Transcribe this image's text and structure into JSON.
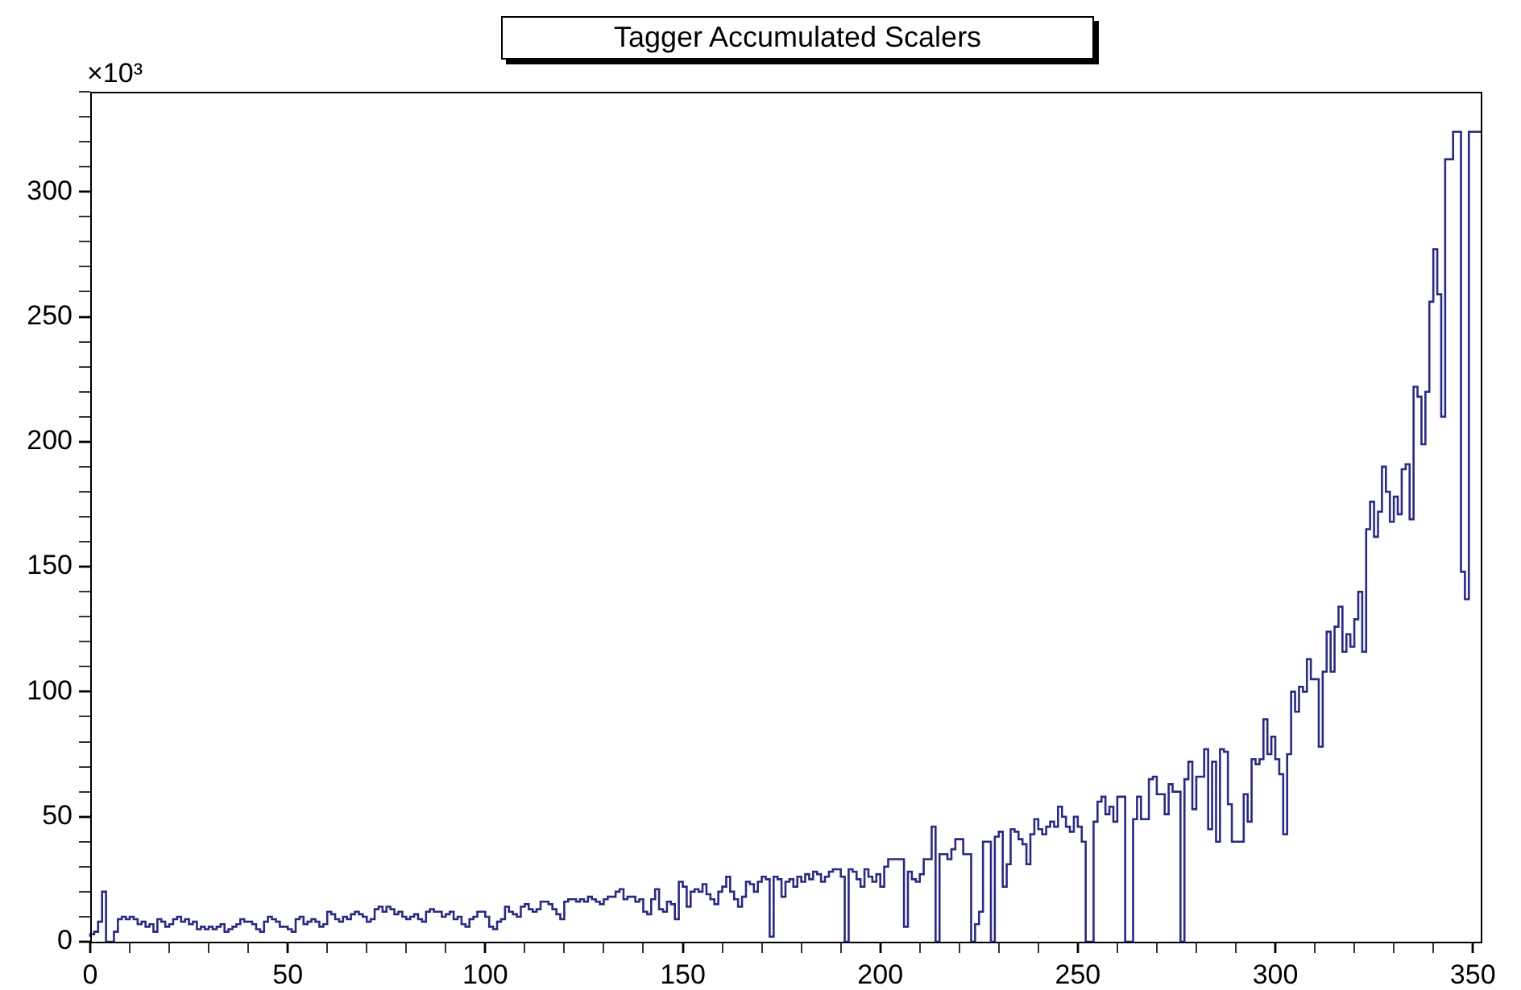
{
  "chart_data": {
    "type": "histogram",
    "title": "Tagger Accumulated Scalers",
    "ylabel": "×10³",
    "bins": [
      0,
      1,
      2,
      3,
      4,
      5,
      6,
      7,
      8,
      9,
      10,
      11,
      12,
      13,
      14,
      15,
      16,
      17,
      18,
      19,
      20,
      21,
      22,
      23,
      24,
      25,
      26,
      27,
      28,
      29,
      30,
      31,
      32,
      33,
      34,
      35,
      36,
      37,
      38,
      39,
      40,
      41,
      42,
      43,
      44,
      45,
      46,
      47,
      48,
      49,
      50,
      51,
      52,
      53,
      54,
      55,
      56,
      57,
      58,
      59,
      60,
      61,
      62,
      63,
      64,
      65,
      66,
      67,
      68,
      69,
      70,
      71,
      72,
      73,
      74,
      75,
      76,
      77,
      78,
      79,
      80,
      81,
      82,
      83,
      84,
      85,
      86,
      87,
      88,
      89,
      90,
      91,
      92,
      93,
      94,
      95,
      96,
      97,
      98,
      99,
      100,
      101,
      102,
      103,
      104,
      105,
      106,
      107,
      108,
      109,
      110,
      111,
      112,
      113,
      114,
      115,
      116,
      117,
      118,
      119,
      120,
      121,
      122,
      123,
      124,
      125,
      126,
      127,
      128,
      129,
      130,
      131,
      132,
      133,
      134,
      135,
      136,
      137,
      138,
      139,
      140,
      141,
      142,
      143,
      144,
      145,
      146,
      147,
      148,
      149,
      150,
      151,
      152,
      153,
      154,
      155,
      156,
      157,
      158,
      159,
      160,
      161,
      162,
      163,
      164,
      165,
      166,
      167,
      168,
      169,
      170,
      171,
      172,
      173,
      174,
      175,
      176,
      177,
      178,
      179,
      180,
      181,
      182,
      183,
      184,
      185,
      186,
      187,
      188,
      189,
      190,
      191,
      192,
      193,
      194,
      195,
      196,
      197,
      198,
      199,
      200,
      201,
      202,
      203,
      204,
      205,
      206,
      207,
      208,
      209,
      210,
      211,
      212,
      213,
      214,
      215,
      216,
      217,
      218,
      219,
      220,
      221,
      222,
      223,
      224,
      225,
      226,
      227,
      228,
      229,
      230,
      231,
      232,
      233,
      234,
      235,
      236,
      237,
      238,
      239,
      240,
      241,
      242,
      243,
      244,
      245,
      246,
      247,
      248,
      249,
      250,
      251,
      252,
      253,
      254,
      255,
      256,
      257,
      258,
      259,
      260,
      261,
      262,
      263,
      264,
      265,
      266,
      267,
      268,
      269,
      270,
      271,
      272,
      273,
      274,
      275,
      276,
      277,
      278,
      279,
      280,
      281,
      282,
      283,
      284,
      285,
      286,
      287,
      288,
      289,
      290,
      291,
      292,
      293,
      294,
      295,
      296,
      297,
      298,
      299,
      300,
      301,
      302,
      303,
      304,
      305,
      306,
      307,
      308,
      309,
      310,
      311,
      312,
      313,
      314,
      315,
      316,
      317,
      318,
      319,
      320,
      321,
      322,
      323,
      324,
      325,
      326,
      327,
      328,
      329,
      330,
      331,
      332,
      333,
      334,
      335,
      336,
      337,
      338,
      339,
      340,
      341,
      342,
      343,
      344,
      345,
      346,
      347,
      348,
      349,
      350,
      351,
      352
    ],
    "values": [
      2,
      3,
      4,
      8,
      20,
      0,
      0,
      4,
      9,
      10,
      9,
      10,
      9,
      7,
      8,
      6,
      7,
      4,
      9,
      8,
      6,
      7,
      9,
      10,
      8,
      9,
      7,
      8,
      5,
      6,
      5,
      6,
      5,
      6,
      7,
      4,
      5,
      6,
      7,
      9,
      8,
      8,
      7,
      5,
      4,
      8,
      10,
      9,
      8,
      6,
      6,
      5,
      4,
      9,
      10,
      7,
      8,
      9,
      8,
      6,
      7,
      12,
      11,
      9,
      8,
      10,
      9,
      11,
      12,
      11,
      10,
      8,
      9,
      13,
      14,
      12,
      14,
      13,
      11,
      12,
      10,
      9,
      10,
      11,
      9,
      8,
      12,
      13,
      12,
      12,
      10,
      11,
      12,
      9,
      10,
      7,
      6,
      9,
      10,
      12,
      12,
      10,
      6,
      5,
      8,
      9,
      14,
      12,
      11,
      10,
      14,
      15,
      13,
      12,
      13,
      16,
      16,
      15,
      13,
      11,
      9,
      16,
      17,
      17,
      16,
      17,
      16,
      18,
      17,
      16,
      15,
      17,
      18,
      18,
      20,
      21,
      17,
      18,
      18,
      16,
      17,
      12,
      11,
      17,
      21,
      13,
      12,
      16,
      15,
      9,
      24,
      22,
      14,
      20,
      21,
      20,
      23,
      19,
      17,
      15,
      20,
      22,
      26,
      20,
      17,
      14,
      18,
      24,
      23,
      20,
      24,
      26,
      25,
      2,
      26,
      25,
      18,
      24,
      25,
      22,
      26,
      24,
      27,
      25,
      28,
      27,
      24,
      26,
      28,
      29,
      29,
      26,
      0,
      29,
      28,
      25,
      22,
      29,
      26,
      24,
      27,
      22,
      30,
      33,
      33,
      33,
      33,
      6,
      28,
      25,
      24,
      27,
      33,
      33,
      46,
      0,
      35,
      35,
      33,
      37,
      41,
      41,
      35,
      35,
      0,
      7,
      12,
      40,
      40,
      0,
      42,
      44,
      22,
      31,
      45,
      44,
      41,
      39,
      31,
      43,
      49,
      45,
      43,
      46,
      48,
      46,
      54,
      50,
      46,
      44,
      50,
      46,
      40,
      0,
      0,
      48,
      56,
      58,
      51,
      54,
      48,
      58,
      58,
      0,
      0,
      49,
      58,
      49,
      49,
      65,
      66,
      59,
      59,
      51,
      63,
      60,
      60,
      0,
      65,
      72,
      53,
      66,
      66,
      77,
      45,
      72,
      40,
      77,
      76,
      55,
      40,
      40,
      40,
      59,
      48,
      73,
      71,
      73,
      89,
      75,
      82,
      73,
      67,
      43,
      75,
      100,
      92,
      102,
      100,
      113,
      105,
      105,
      78,
      108,
      124,
      108,
      126,
      134,
      116,
      123,
      118,
      129,
      140,
      116,
      165,
      176,
      162,
      172,
      190,
      180,
      168,
      178,
      171,
      189,
      191,
      169,
      222,
      218,
      199,
      220,
      256,
      277,
      259,
      210,
      313,
      313,
      324,
      324,
      148,
      137,
      324,
      324
    ],
    "color": "#2a2a80",
    "xlim": [
      0,
      352
    ],
    "ylim": [
      0,
      340
    ],
    "xticks": [
      0,
      {
        "value": 10,
        "label": null
      },
      {
        "value": 20,
        "label": null
      },
      {
        "value": 30,
        "label": null
      },
      {
        "value": 40,
        "label": null
      },
      50,
      {
        "value": 60,
        "label": null
      },
      {
        "value": 70,
        "label": null
      },
      {
        "value": 80,
        "label": null
      },
      {
        "value": 90,
        "label": null
      },
      100,
      {
        "value": 110,
        "label": null
      },
      {
        "value": 120,
        "label": null
      },
      {
        "value": 130,
        "label": null
      },
      {
        "value": 140,
        "label": null
      },
      150,
      {
        "value": 160,
        "label": null
      },
      {
        "value": 170,
        "label": null
      },
      {
        "value": 180,
        "label": null
      },
      {
        "value": 190,
        "label": null
      },
      200,
      {
        "value": 210,
        "label": null
      },
      {
        "value": 220,
        "label": null
      },
      {
        "value": 230,
        "label": null
      },
      {
        "value": 240,
        "label": null
      },
      250,
      {
        "value": 260,
        "label": null
      },
      {
        "value": 270,
        "label": null
      },
      {
        "value": 280,
        "label": null
      },
      {
        "value": 290,
        "label": null
      },
      300,
      {
        "value": 310,
        "label": null
      },
      {
        "value": 320,
        "label": null
      },
      {
        "value": 330,
        "label": null
      },
      {
        "value": 340,
        "label": null
      },
      350
    ],
    "yticks": [
      0,
      {
        "value": 10,
        "label": null
      },
      {
        "value": 20,
        "label": null
      },
      {
        "value": 30,
        "label": null
      },
      {
        "value": 40,
        "label": null
      },
      50,
      {
        "value": 60,
        "label": null
      },
      {
        "value": 70,
        "label": null
      },
      {
        "value": 80,
        "label": null
      },
      {
        "value": 90,
        "label": null
      },
      100,
      {
        "value": 110,
        "label": null
      },
      {
        "value": 120,
        "label": null
      },
      {
        "value": 130,
        "label": null
      },
      {
        "value": 140,
        "label": null
      },
      150,
      {
        "value": 160,
        "label": null
      },
      {
        "value": 170,
        "label": null
      },
      {
        "value": 180,
        "label": null
      },
      {
        "value": 190,
        "label": null
      },
      200,
      {
        "value": 210,
        "label": null
      },
      {
        "value": 220,
        "label": null
      },
      {
        "value": 230,
        "label": null
      },
      {
        "value": 240,
        "label": null
      },
      250,
      {
        "value": 260,
        "label": null
      },
      {
        "value": 270,
        "label": null
      },
      {
        "value": 280,
        "label": null
      },
      {
        "value": 290,
        "label": null
      },
      300,
      {
        "value": 310,
        "label": null
      },
      {
        "value": 320,
        "label": null
      },
      {
        "value": 330,
        "label": null
      },
      {
        "value": 340,
        "label": null
      }
    ],
    "grid": false,
    "legend": false
  }
}
